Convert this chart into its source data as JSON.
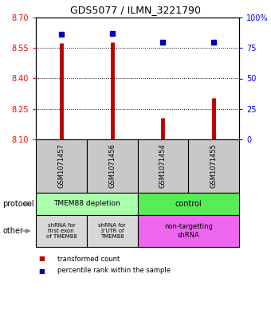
{
  "title": "GDS5077 / ILMN_3221790",
  "samples": [
    "GSM1071457",
    "GSM1071456",
    "GSM1071454",
    "GSM1071455"
  ],
  "transformed_counts": [
    8.575,
    8.58,
    8.205,
    8.305
  ],
  "percentile_ranks": [
    86,
    87,
    80,
    80
  ],
  "ylim_left": [
    8.1,
    8.7
  ],
  "ylim_right": [
    0,
    100
  ],
  "yticks_left": [
    8.1,
    8.25,
    8.4,
    8.55,
    8.7
  ],
  "yticks_right": [
    0,
    25,
    50,
    75,
    100
  ],
  "bar_color": "#bb0000",
  "dot_color": "#0000bb",
  "protocol_labels": [
    "TMEM88 depletion",
    "control"
  ],
  "protocol_colors": [
    "#aaffaa",
    "#55ee55"
  ],
  "other_labels": [
    "shRNA for\nfirst exon\nof TMEM88",
    "shRNA for\n3'UTR of\nTMEM88",
    "non-targetting\nshRNA"
  ],
  "other_colors": [
    "#d8d8d8",
    "#d8d8d8",
    "#ee66ee"
  ],
  "sample_box_color": "#c8c8c8",
  "legend_bar_label": "transformed count",
  "legend_dot_label": "percentile rank within the sample",
  "protocol_row_label": "protocol",
  "other_row_label": "other",
  "figsize": [
    3.4,
    3.93
  ],
  "dpi": 100
}
